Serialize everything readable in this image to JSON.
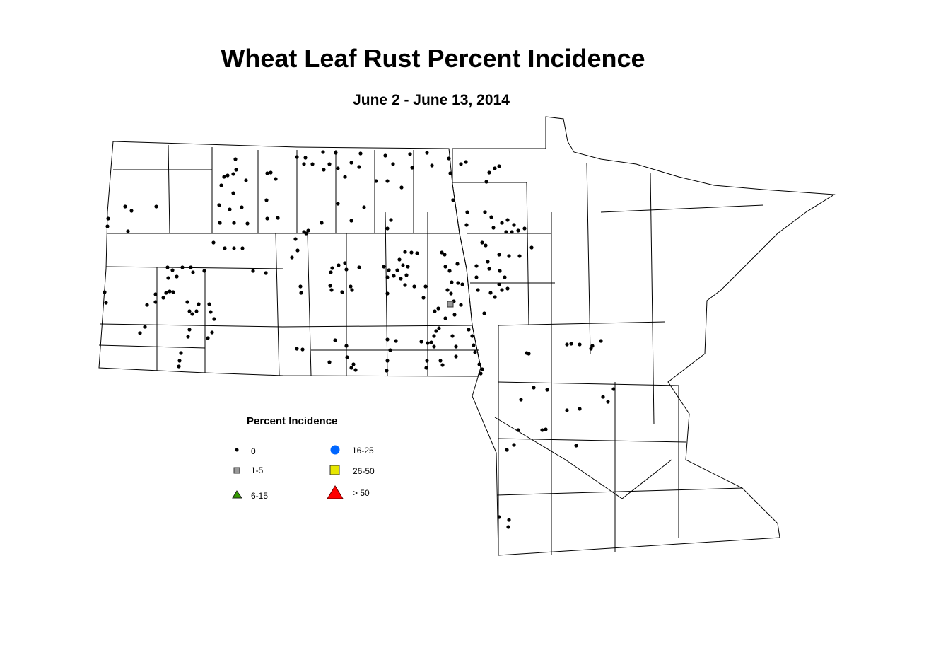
{
  "title": "Wheat Leaf Rust Percent Incidence",
  "subtitle": "June 2 - June 13, 2014",
  "legend": {
    "title": "Percent Incidence",
    "classes": [
      {
        "label": "0",
        "symbol": "dot",
        "color": "#000000"
      },
      {
        "label": "1-5",
        "symbol": "square",
        "color": "#999999"
      },
      {
        "label": "6-15",
        "symbol": "triangle",
        "color": "#339900"
      },
      {
        "label": "16-25",
        "symbol": "circle",
        "color": "#0066ff"
      },
      {
        "label": "26-50",
        "symbol": "square",
        "color": "#e6e600"
      },
      {
        "label": "> 50",
        "symbol": "triangle",
        "color": "#ff0000"
      }
    ]
  }
}
